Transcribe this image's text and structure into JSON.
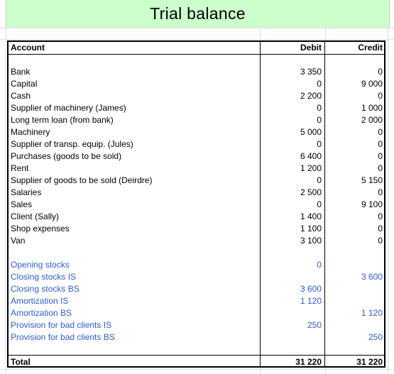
{
  "title": "Trial balance",
  "headers": {
    "account": "Account",
    "debit": "Debit",
    "credit": "Credit"
  },
  "rows": [
    {
      "account": "Bank",
      "debit": "3 350",
      "credit": "0"
    },
    {
      "account": "Capital",
      "debit": "0",
      "credit": "9 000"
    },
    {
      "account": "Cash",
      "debit": "2 200",
      "credit": "0"
    },
    {
      "account": "Supplier of machinery (James)",
      "debit": "0",
      "credit": "1 000"
    },
    {
      "account": "Long term loan (from bank)",
      "debit": "0",
      "credit": "2 000"
    },
    {
      "account": "Machinery",
      "debit": "5 000",
      "credit": "0"
    },
    {
      "account": "Supplier of transp. equip. (Jules)",
      "debit": "0",
      "credit": "0"
    },
    {
      "account": "Purchases (goods to be sold)",
      "debit": "6 400",
      "credit": "0"
    },
    {
      "account": "Rent",
      "debit": "1 200",
      "credit": "0"
    },
    {
      "account": "Supplier of goods to be sold (Deirdre)",
      "debit": "0",
      "credit": "5 150"
    },
    {
      "account": "Salaries",
      "debit": "2 500",
      "credit": "0"
    },
    {
      "account": "Sales",
      "debit": "0",
      "credit": "9 100"
    },
    {
      "account": "Client (Sally)",
      "debit": "1 400",
      "credit": "0"
    },
    {
      "account": "Shop expenses",
      "debit": "1 100",
      "credit": "0"
    },
    {
      "account": "Van",
      "debit": "3 100",
      "credit": "0"
    }
  ],
  "adjustments": [
    {
      "account": "Opening stocks",
      "debit": "0",
      "credit": ""
    },
    {
      "account": "Closing stocks IS",
      "debit": "",
      "credit": "3 600"
    },
    {
      "account": "Closing stocks BS",
      "debit": "3 600",
      "credit": ""
    },
    {
      "account": "Amortization IS",
      "debit": "1 120",
      "credit": ""
    },
    {
      "account": "Amortization BS",
      "debit": "",
      "credit": "1 120"
    },
    {
      "account": "Provision for bad clients IS",
      "debit": "250",
      "credit": ""
    },
    {
      "account": "Provision for bad clients BS",
      "debit": "",
      "credit": "250"
    }
  ],
  "total": {
    "label": "Total",
    "debit": "31 220",
    "credit": "31 220"
  },
  "colors": {
    "title_bg": "#ccffcc",
    "adjustment_text": "#2f5cd1"
  }
}
